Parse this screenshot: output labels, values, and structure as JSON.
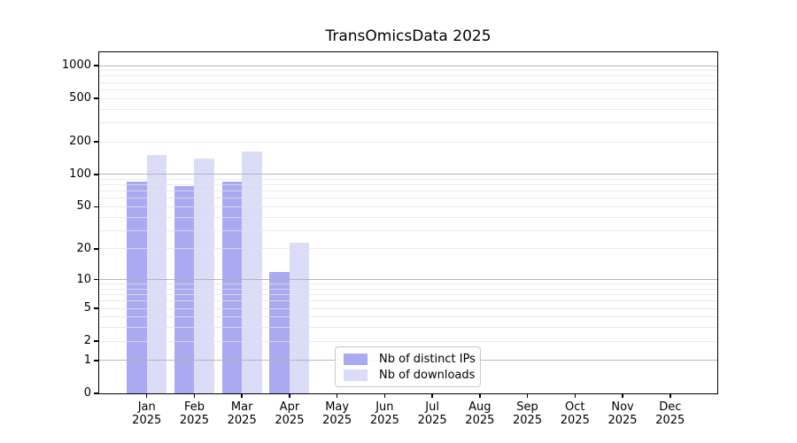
{
  "title": "TransOmicsData 2025",
  "chart_data": {
    "type": "bar",
    "title": "TransOmicsData 2025",
    "xlabel": "",
    "ylabel": "",
    "x_axis": {
      "categories": [
        "Jan 2025",
        "Feb 2025",
        "Mar 2025",
        "Apr 2025",
        "May 2025",
        "Jun 2025",
        "Jul 2025",
        "Aug 2025",
        "Sep 2025",
        "Oct 2025",
        "Nov 2025",
        "Dec 2025"
      ]
    },
    "y_axis": {
      "scale": "log1p",
      "ticks": [
        0,
        1,
        2,
        5,
        10,
        20,
        50,
        100,
        200,
        500,
        1000
      ],
      "range": [
        0,
        1300
      ],
      "major_gridlines": [
        1,
        10,
        100,
        1000
      ],
      "minor_gridlines": [
        2,
        3,
        4,
        5,
        6,
        7,
        8,
        9,
        20,
        30,
        40,
        50,
        60,
        70,
        80,
        90,
        200,
        300,
        400,
        500,
        600,
        700,
        800,
        900
      ],
      "grid": true
    },
    "series": [
      {
        "name": "Nb of distinct IPs",
        "color": "#a9aaf0",
        "values": [
          85,
          78,
          86,
          12,
          0,
          0,
          0,
          0,
          0,
          0,
          0,
          0
        ]
      },
      {
        "name": "Nb of downloads",
        "color": "#dadcf8",
        "values": [
          150,
          140,
          162,
          23,
          0,
          0,
          0,
          0,
          0,
          0,
          0,
          0
        ]
      }
    ],
    "legend": {
      "position": "lower center",
      "labels": [
        "Nb of distinct IPs",
        "Nb of downloads"
      ]
    }
  },
  "colors": {
    "background": "#ffffff",
    "axis": "#000000",
    "major_grid": "#b0b0b0",
    "minor_grid": "#e6e6e6",
    "legend_border": "#c9c9c9"
  }
}
